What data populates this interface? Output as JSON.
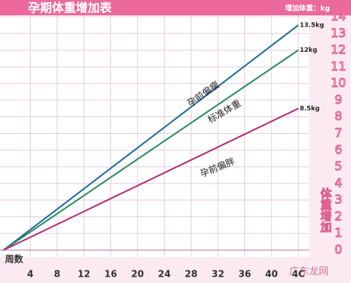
{
  "chart_data": {
    "type": "line",
    "title": "孕期体重增加表",
    "y_axis_unit": "增加体重：kg",
    "y_axis_title": "体重增加",
    "x_axis_title": "周数",
    "watermark": "广东龙网",
    "x": [
      0,
      44
    ],
    "series": [
      {
        "name": "孕前偏瘦",
        "color": "#1e6d9c",
        "values": [
          0,
          13.5
        ],
        "value_labels": [
          null,
          "13.5kg"
        ]
      },
      {
        "name": "标准体重",
        "color": "#2a8c5c",
        "values": [
          0,
          12
        ],
        "value_labels": [
          null,
          "12kg"
        ]
      },
      {
        "name": "孕前偏胖",
        "color": "#b2307c",
        "values": [
          0,
          8.5
        ],
        "value_labels": [
          null,
          "8.5kg"
        ]
      }
    ],
    "xlim": [
      0,
      44
    ],
    "xticks": [
      4,
      8,
      12,
      16,
      20,
      24,
      28,
      32,
      36,
      40,
      {
        "value": 44,
        "label": "4C"
      }
    ],
    "ylim": [
      0,
      14
    ],
    "yticks": [
      0,
      1,
      2,
      3,
      4,
      5,
      6,
      7,
      8,
      9,
      10,
      11,
      12,
      13,
      14
    ],
    "grid": true
  }
}
